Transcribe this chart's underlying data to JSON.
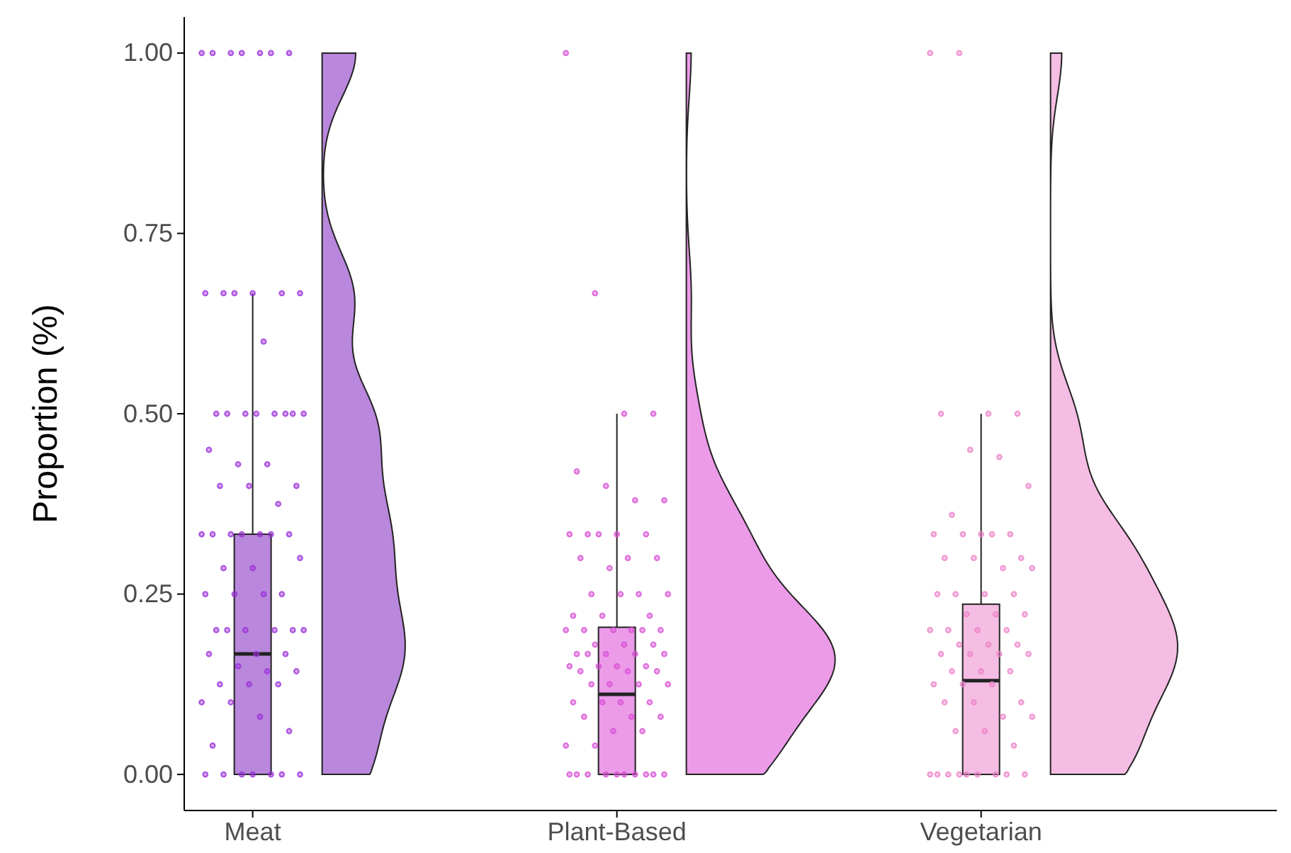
{
  "chart_data": {
    "type": "box",
    "ylabel": "Proportion (%)",
    "categories": [
      "Meat",
      "Plant-Based",
      "Vegetarian"
    ],
    "colors": [
      "#b987dc",
      "#eb9be8",
      "#f5bde3"
    ],
    "boxes": [
      {
        "low": 0,
        "q1": 0,
        "median": 0.167,
        "q3": 0.333,
        "high": 0.667
      },
      {
        "low": 0,
        "q1": 0,
        "median": 0.111,
        "q3": 0.204,
        "high": 0.5
      },
      {
        "low": 0,
        "q1": 0,
        "median": 0.13,
        "q3": 0.236,
        "high": 0.5
      }
    ],
    "ylim": [
      -0.05,
      1.05
    ],
    "yticks": [
      {
        "value": 0,
        "label": "0.00"
      },
      {
        "value": 0.25,
        "label": "0.25"
      },
      {
        "value": 0.5,
        "label": "0.50"
      },
      {
        "value": 0.75,
        "label": "0.75"
      },
      {
        "value": 1,
        "label": "1.00"
      }
    ],
    "grid": false,
    "marker": "circle",
    "series": [
      {
        "type": "scatter",
        "color": "#9b30d9",
        "x": [
          "Meat",
          "Meat",
          "Meat",
          "Meat",
          "Meat",
          "Meat",
          "Meat",
          "Meat",
          "Meat",
          "Meat",
          "Meat",
          "Meat",
          "Meat",
          "Meat",
          "Meat",
          "Meat",
          "Meat",
          "Meat",
          "Meat",
          "Meat",
          "Meat",
          "Meat",
          "Meat",
          "Meat",
          "Meat",
          "Meat",
          "Meat",
          "Meat",
          "Meat",
          "Meat",
          "Meat",
          "Meat",
          "Meat",
          "Meat",
          "Meat",
          "Meat",
          "Meat",
          "Meat",
          "Meat",
          "Meat",
          "Meat",
          "Meat",
          "Meat",
          "Meat",
          "Meat",
          "Meat",
          "Meat",
          "Meat",
          "Meat",
          "Meat",
          "Meat",
          "Meat",
          "Meat",
          "Meat",
          "Meat",
          "Meat",
          "Meat",
          "Meat",
          "Meat",
          "Meat",
          "Meat",
          "Meat",
          "Meat",
          "Meat",
          "Meat",
          "Meat",
          "Meat",
          "Meat",
          "Meat",
          "Meat"
        ],
        "values": [
          1,
          1,
          1,
          1,
          1,
          1,
          1,
          0.667,
          0.667,
          0.667,
          0.667,
          0.667,
          0.667,
          0.6,
          0.5,
          0.5,
          0.5,
          0.5,
          0.5,
          0.5,
          0.5,
          0.5,
          0.45,
          0.43,
          0.43,
          0.4,
          0.4,
          0.4,
          0.375,
          0.333,
          0.333,
          0.333,
          0.333,
          0.333,
          0.333,
          0.333,
          0.3,
          0.286,
          0.286,
          0.25,
          0.25,
          0.25,
          0.25,
          0.2,
          0.2,
          0.2,
          0.2,
          0.2,
          0.2,
          0.167,
          0.167,
          0.167,
          0.15,
          0.143,
          0.143,
          0.125,
          0.125,
          0.125,
          0.1,
          0.1,
          0.08,
          0.06,
          0.04,
          0,
          0,
          0,
          0,
          0,
          0,
          0
        ]
      },
      {
        "type": "scatter",
        "color": "#d94fd6",
        "x": [
          "Plant-Based",
          "Plant-Based",
          "Plant-Based",
          "Plant-Based",
          "Plant-Based",
          "Plant-Based",
          "Plant-Based",
          "Plant-Based",
          "Plant-Based",
          "Plant-Based",
          "Plant-Based",
          "Plant-Based",
          "Plant-Based",
          "Plant-Based",
          "Plant-Based",
          "Plant-Based",
          "Plant-Based",
          "Plant-Based",
          "Plant-Based",
          "Plant-Based",
          "Plant-Based",
          "Plant-Based",
          "Plant-Based",
          "Plant-Based",
          "Plant-Based",
          "Plant-Based",
          "Plant-Based",
          "Plant-Based",
          "Plant-Based",
          "Plant-Based",
          "Plant-Based",
          "Plant-Based",
          "Plant-Based",
          "Plant-Based",
          "Plant-Based",
          "Plant-Based",
          "Plant-Based",
          "Plant-Based",
          "Plant-Based",
          "Plant-Based",
          "Plant-Based",
          "Plant-Based",
          "Plant-Based",
          "Plant-Based",
          "Plant-Based",
          "Plant-Based",
          "Plant-Based",
          "Plant-Based",
          "Plant-Based",
          "Plant-Based",
          "Plant-Based",
          "Plant-Based",
          "Plant-Based",
          "Plant-Based",
          "Plant-Based",
          "Plant-Based",
          "Plant-Based",
          "Plant-Based",
          "Plant-Based",
          "Plant-Based",
          "Plant-Based",
          "Plant-Based",
          "Plant-Based",
          "Plant-Based",
          "Plant-Based",
          "Plant-Based",
          "Plant-Based",
          "Plant-Based",
          "Plant-Based",
          "Plant-Based"
        ],
        "values": [
          1,
          0.667,
          0.5,
          0.5,
          0.42,
          0.4,
          0.38,
          0.38,
          0.333,
          0.333,
          0.333,
          0.333,
          0.333,
          0.3,
          0.3,
          0.3,
          0.286,
          0.25,
          0.25,
          0.25,
          0.25,
          0.22,
          0.22,
          0.22,
          0.2,
          0.2,
          0.2,
          0.2,
          0.2,
          0.2,
          0.18,
          0.18,
          0.18,
          0.167,
          0.167,
          0.167,
          0.167,
          0.167,
          0.15,
          0.15,
          0.15,
          0.15,
          0.143,
          0.143,
          0.143,
          0.125,
          0.125,
          0.125,
          0.125,
          0.1,
          0.1,
          0.1,
          0.1,
          0.08,
          0.08,
          0.08,
          0.06,
          0.06,
          0.04,
          0.04,
          0,
          0,
          0,
          0,
          0,
          0,
          0,
          0,
          0,
          0
        ]
      },
      {
        "type": "scatter",
        "color": "#ee82c8",
        "x": [
          "Vegetarian",
          "Vegetarian",
          "Vegetarian",
          "Vegetarian",
          "Vegetarian",
          "Vegetarian",
          "Vegetarian",
          "Vegetarian",
          "Vegetarian",
          "Vegetarian",
          "Vegetarian",
          "Vegetarian",
          "Vegetarian",
          "Vegetarian",
          "Vegetarian",
          "Vegetarian",
          "Vegetarian",
          "Vegetarian",
          "Vegetarian",
          "Vegetarian",
          "Vegetarian",
          "Vegetarian",
          "Vegetarian",
          "Vegetarian",
          "Vegetarian",
          "Vegetarian",
          "Vegetarian",
          "Vegetarian",
          "Vegetarian",
          "Vegetarian",
          "Vegetarian",
          "Vegetarian",
          "Vegetarian",
          "Vegetarian",
          "Vegetarian",
          "Vegetarian",
          "Vegetarian",
          "Vegetarian",
          "Vegetarian",
          "Vegetarian",
          "Vegetarian",
          "Vegetarian",
          "Vegetarian",
          "Vegetarian",
          "Vegetarian",
          "Vegetarian",
          "Vegetarian",
          "Vegetarian",
          "Vegetarian",
          "Vegetarian",
          "Vegetarian",
          "Vegetarian",
          "Vegetarian",
          "Vegetarian",
          "Vegetarian",
          "Vegetarian",
          "Vegetarian",
          "Vegetarian",
          "Vegetarian",
          "Vegetarian"
        ],
        "values": [
          1,
          1,
          0.5,
          0.5,
          0.5,
          0.45,
          0.44,
          0.4,
          0.36,
          0.333,
          0.333,
          0.333,
          0.333,
          0.333,
          0.3,
          0.3,
          0.3,
          0.286,
          0.286,
          0.25,
          0.25,
          0.25,
          0.25,
          0.222,
          0.222,
          0.222,
          0.2,
          0.2,
          0.2,
          0.2,
          0.18,
          0.18,
          0.18,
          0.167,
          0.167,
          0.167,
          0.167,
          0.143,
          0.143,
          0.143,
          0.125,
          0.125,
          0.125,
          0.1,
          0.1,
          0.1,
          0.08,
          0.08,
          0.06,
          0.06,
          0.04,
          0,
          0,
          0,
          0,
          0,
          0,
          0,
          0,
          0
        ]
      }
    ]
  }
}
